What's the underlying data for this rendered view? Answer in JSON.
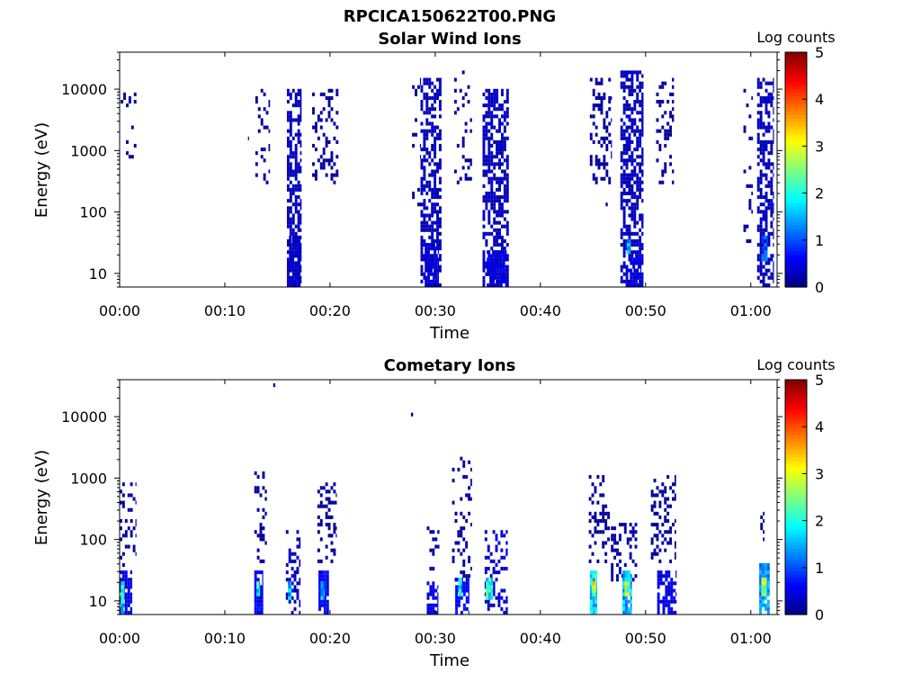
{
  "figure_title": "RPCICA150622T00.PNG",
  "chart_data": [
    {
      "type": "heatmap",
      "title": "Solar Wind Ions",
      "xlabel": "Time",
      "ylabel": "Energy (eV)",
      "yscale": "log",
      "ylim": [
        6,
        40000
      ],
      "xlim_minutes": [
        0,
        62.5
      ],
      "xticks": [
        "00:00",
        "00:10",
        "00:20",
        "00:30",
        "00:40",
        "00:50",
        "01:00"
      ],
      "xtick_minutes": [
        0,
        10,
        20,
        30,
        40,
        50,
        60
      ],
      "yticks": [
        10,
        100,
        1000,
        10000
      ],
      "ytick_labels": [
        "10",
        "100",
        "1000",
        "10000"
      ],
      "colorbar": {
        "label": "Log counts",
        "range": [
          0,
          5
        ],
        "ticks": [
          "0",
          "1",
          "2",
          "3",
          "4",
          "5"
        ],
        "colormap": "jet"
      },
      "bursts": [
        {
          "t0": 0.1,
          "t1": 1.6,
          "emin": 350,
          "emax": 12000,
          "level": 0.15,
          "density": 0.12
        },
        {
          "t0": 12.2,
          "t1": 12.3,
          "emin": 1500,
          "emax": 1700,
          "level": 0.1,
          "density": 1.0
        },
        {
          "t0": 12.9,
          "t1": 14.3,
          "emin": 300,
          "emax": 12000,
          "level": 0.15,
          "density": 0.25
        },
        {
          "t0": 15.9,
          "t1": 17.3,
          "emin": 6,
          "emax": 10000,
          "level": 0.3,
          "density": 0.6
        },
        {
          "t0": 16.1,
          "t1": 17.2,
          "emin": 6,
          "emax": 40,
          "level": 0.35,
          "density": 0.85
        },
        {
          "t0": 18.3,
          "t1": 20.8,
          "emin": 300,
          "emax": 10000,
          "level": 0.15,
          "density": 0.25
        },
        {
          "t0": 27.8,
          "t1": 28.6,
          "emin": 80,
          "emax": 15000,
          "level": 0.15,
          "density": 0.15
        },
        {
          "t0": 28.6,
          "t1": 30.6,
          "emin": 6,
          "emax": 15000,
          "level": 0.3,
          "density": 0.55
        },
        {
          "t0": 29.0,
          "t1": 30.3,
          "emin": 6,
          "emax": 30,
          "level": 0.4,
          "density": 0.85
        },
        {
          "t0": 31.8,
          "t1": 33.5,
          "emin": 300,
          "emax": 20000,
          "level": 0.15,
          "density": 0.2
        },
        {
          "t0": 34.5,
          "t1": 37.0,
          "emin": 6,
          "emax": 10000,
          "level": 0.3,
          "density": 0.6
        },
        {
          "t0": 34.9,
          "t1": 36.8,
          "emin": 6,
          "emax": 25,
          "level": 0.45,
          "density": 0.85
        },
        {
          "t0": 44.7,
          "t1": 46.8,
          "emin": 300,
          "emax": 15000,
          "level": 0.15,
          "density": 0.25
        },
        {
          "t0": 46.2,
          "t1": 46.4,
          "emin": 130,
          "emax": 150,
          "level": 0.1,
          "density": 1.0
        },
        {
          "t0": 47.6,
          "t1": 49.8,
          "emin": 6,
          "emax": 20000,
          "level": 0.3,
          "density": 0.6
        },
        {
          "t0": 48.2,
          "t1": 48.6,
          "emin": 20,
          "emax": 35,
          "level": 1.4,
          "density": 1.0
        },
        {
          "t0": 48.5,
          "t1": 49.6,
          "emin": 6,
          "emax": 20,
          "level": 0.5,
          "density": 0.9
        },
        {
          "t0": 51.0,
          "t1": 52.7,
          "emin": 300,
          "emax": 15000,
          "level": 0.15,
          "density": 0.25
        },
        {
          "t0": 59.3,
          "t1": 60.2,
          "emin": 30,
          "emax": 10000,
          "level": 0.15,
          "density": 0.15
        },
        {
          "t0": 60.6,
          "t1": 62.2,
          "emin": 6,
          "emax": 15000,
          "level": 0.3,
          "density": 0.55
        },
        {
          "t0": 61.0,
          "t1": 61.6,
          "emin": 15,
          "emax": 40,
          "level": 1.0,
          "density": 0.85
        }
      ]
    },
    {
      "type": "heatmap",
      "title": "Cometary Ions",
      "xlabel": "Time",
      "ylabel": "Energy (eV)",
      "yscale": "log",
      "ylim": [
        6,
        40000
      ],
      "xlim_minutes": [
        0,
        62.5
      ],
      "xticks": [
        "00:00",
        "00:10",
        "00:20",
        "00:30",
        "00:40",
        "00:50",
        "01:00"
      ],
      "xtick_minutes": [
        0,
        10,
        20,
        30,
        40,
        50,
        60
      ],
      "yticks": [
        10,
        100,
        1000,
        10000
      ],
      "ytick_labels": [
        "10",
        "100",
        "1000",
        "10000"
      ],
      "colorbar": {
        "label": "Log counts",
        "range": [
          0,
          5
        ],
        "ticks": [
          "0",
          "1",
          "2",
          "3",
          "4",
          "5"
        ],
        "colormap": "jet"
      },
      "bursts": [
        {
          "t0": 0.0,
          "t1": 1.6,
          "emin": 30,
          "emax": 900,
          "level": 0.15,
          "density": 0.2
        },
        {
          "t0": 0.0,
          "t1": 1.2,
          "emin": 6,
          "emax": 30,
          "level": 0.5,
          "density": 0.75
        },
        {
          "t0": 0.1,
          "t1": 0.4,
          "emin": 6,
          "emax": 20,
          "level": 1.8,
          "density": 1.0
        },
        {
          "t0": 12.8,
          "t1": 14.0,
          "emin": 40,
          "emax": 1300,
          "level": 0.15,
          "density": 0.25
        },
        {
          "t0": 12.8,
          "t1": 13.6,
          "emin": 6,
          "emax": 30,
          "level": 0.6,
          "density": 0.8
        },
        {
          "t0": 13.0,
          "t1": 13.3,
          "emin": 12,
          "emax": 22,
          "level": 1.9,
          "density": 1.0
        },
        {
          "t0": 14.6,
          "t1": 14.8,
          "emin": 30000,
          "emax": 33000,
          "level": 0.1,
          "density": 1.0
        },
        {
          "t0": 15.8,
          "t1": 17.2,
          "emin": 6,
          "emax": 150,
          "level": 0.35,
          "density": 0.35
        },
        {
          "t0": 16.0,
          "t1": 16.3,
          "emin": 10,
          "emax": 20,
          "level": 1.5,
          "density": 1.0
        },
        {
          "t0": 18.8,
          "t1": 20.6,
          "emin": 40,
          "emax": 800,
          "level": 0.15,
          "density": 0.3
        },
        {
          "t0": 18.9,
          "t1": 19.9,
          "emin": 6,
          "emax": 30,
          "level": 0.6,
          "density": 0.85
        },
        {
          "t0": 19.1,
          "t1": 19.5,
          "emin": 10,
          "emax": 22,
          "level": 1.5,
          "density": 1.0
        },
        {
          "t0": 27.7,
          "t1": 27.9,
          "emin": 10000,
          "emax": 11000,
          "level": 0.1,
          "density": 1.0
        },
        {
          "t0": 29.2,
          "t1": 30.4,
          "emin": 30,
          "emax": 200,
          "level": 0.15,
          "density": 0.25
        },
        {
          "t0": 29.2,
          "t1": 30.3,
          "emin": 6,
          "emax": 20,
          "level": 0.5,
          "density": 0.75
        },
        {
          "t0": 31.6,
          "t1": 33.5,
          "emin": 20,
          "emax": 2300,
          "level": 0.15,
          "density": 0.25
        },
        {
          "t0": 31.9,
          "t1": 33.2,
          "emin": 6,
          "emax": 25,
          "level": 0.6,
          "density": 0.75
        },
        {
          "t0": 32.2,
          "t1": 32.5,
          "emin": 12,
          "emax": 25,
          "level": 1.8,
          "density": 1.0
        },
        {
          "t0": 34.7,
          "t1": 36.9,
          "emin": 6,
          "emax": 150,
          "level": 0.4,
          "density": 0.4
        },
        {
          "t0": 34.8,
          "t1": 35.5,
          "emin": 10,
          "emax": 25,
          "level": 1.9,
          "density": 1.0
        },
        {
          "t0": 44.6,
          "t1": 46.6,
          "emin": 40,
          "emax": 1100,
          "level": 0.15,
          "density": 0.3
        },
        {
          "t0": 44.7,
          "t1": 45.4,
          "emin": 6,
          "emax": 30,
          "level": 1.8,
          "density": 1.0
        },
        {
          "t0": 44.9,
          "t1": 45.3,
          "emin": 12,
          "emax": 20,
          "level": 2.7,
          "density": 1.0
        },
        {
          "t0": 46.7,
          "t1": 49.2,
          "emin": 20,
          "emax": 200,
          "level": 0.2,
          "density": 0.3
        },
        {
          "t0": 47.8,
          "t1": 48.7,
          "emin": 6,
          "emax": 30,
          "level": 1.5,
          "density": 0.9
        },
        {
          "t0": 48.0,
          "t1": 48.5,
          "emin": 12,
          "emax": 25,
          "level": 2.6,
          "density": 1.0
        },
        {
          "t0": 50.5,
          "t1": 52.9,
          "emin": 40,
          "emax": 1100,
          "level": 0.15,
          "density": 0.3
        },
        {
          "t0": 51.1,
          "t1": 52.9,
          "emin": 6,
          "emax": 30,
          "level": 0.5,
          "density": 0.65
        },
        {
          "t0": 60.8,
          "t1": 61.8,
          "emin": 6,
          "emax": 40,
          "level": 1.3,
          "density": 0.9
        },
        {
          "t0": 61.0,
          "t1": 61.5,
          "emin": 12,
          "emax": 25,
          "level": 2.5,
          "density": 1.0
        },
        {
          "t0": 60.9,
          "t1": 61.3,
          "emin": 100,
          "emax": 350,
          "level": 0.1,
          "density": 0.4
        }
      ]
    }
  ]
}
